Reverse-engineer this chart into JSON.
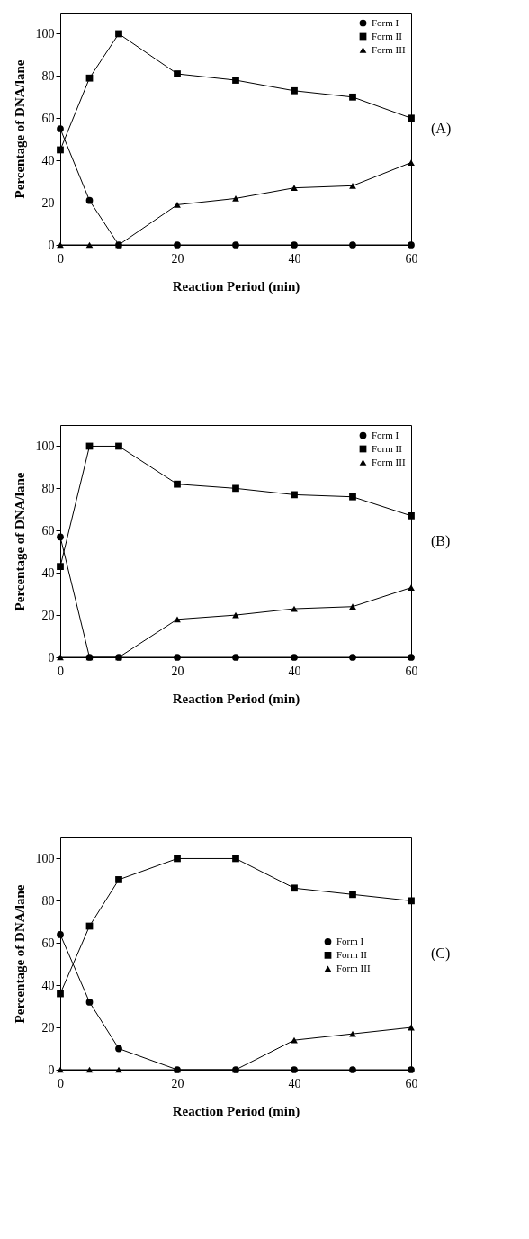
{
  "chart_data": [
    {
      "type": "line",
      "xlabel": "Reaction Period (min)",
      "ylabel": "Percentage of DNA/lane",
      "annotations": [
        "(A)"
      ],
      "x": [
        0,
        5,
        10,
        20,
        30,
        40,
        50,
        60
      ],
      "xlim": [
        0,
        60
      ],
      "xticks": [
        0,
        20,
        40,
        60
      ],
      "ylim": [
        0,
        110
      ],
      "yticks": [
        0,
        20,
        40,
        60,
        80,
        100
      ],
      "grid": false,
      "legend": "top right",
      "series": [
        {
          "name": "Form I",
          "color": "#000000",
          "marker": "circle",
          "values": [
            55,
            21,
            0,
            0,
            0,
            0,
            0,
            0
          ]
        },
        {
          "name": "Form II",
          "color": "#000000",
          "marker": "square",
          "values": [
            45,
            79,
            100,
            81,
            78,
            73,
            70,
            60
          ]
        },
        {
          "name": "Form III",
          "color": "#000000",
          "marker": "triangle",
          "values": [
            0,
            0,
            0,
            19,
            22,
            27,
            28,
            39
          ]
        }
      ]
    },
    {
      "type": "line",
      "xlabel": "Reaction Period (min)",
      "ylabel": "Percentage of DNA/lane",
      "annotations": [
        "(B)"
      ],
      "x": [
        0,
        5,
        10,
        20,
        30,
        40,
        50,
        60
      ],
      "xlim": [
        0,
        60
      ],
      "xticks": [
        0,
        20,
        40,
        60
      ],
      "ylim": [
        0,
        110
      ],
      "yticks": [
        0,
        20,
        40,
        60,
        80,
        100
      ],
      "grid": false,
      "legend": "top right",
      "series": [
        {
          "name": "Form I",
          "color": "#000000",
          "marker": "circle",
          "values": [
            57,
            0,
            0,
            0,
            0,
            0,
            0,
            0
          ]
        },
        {
          "name": "Form II",
          "color": "#000000",
          "marker": "square",
          "values": [
            43,
            100,
            100,
            82,
            80,
            77,
            76,
            67
          ]
        },
        {
          "name": "Form III",
          "color": "#000000",
          "marker": "triangle",
          "values": [
            0,
            0,
            0,
            18,
            20,
            23,
            24,
            33
          ]
        }
      ]
    },
    {
      "type": "line",
      "xlabel": "Reaction Period (min)",
      "ylabel": "Percentage of DNA/lane",
      "annotations": [
        "(C)"
      ],
      "x": [
        0,
        5,
        10,
        20,
        30,
        40,
        50,
        60
      ],
      "xlim": [
        0,
        60
      ],
      "xticks": [
        0,
        20,
        40,
        60
      ],
      "ylim": [
        0,
        110
      ],
      "yticks": [
        0,
        20,
        40,
        60,
        80,
        100
      ],
      "grid": false,
      "legend": "right",
      "series": [
        {
          "name": "Form I",
          "color": "#000000",
          "marker": "circle",
          "values": [
            64,
            32,
            10,
            0,
            0,
            0,
            0,
            0
          ]
        },
        {
          "name": "Form II",
          "color": "#000000",
          "marker": "square",
          "values": [
            36,
            68,
            90,
            100,
            100,
            86,
            83,
            80
          ]
        },
        {
          "name": "Form III",
          "color": "#000000",
          "marker": "triangle",
          "values": [
            0,
            0,
            0,
            0,
            0,
            14,
            17,
            20
          ]
        }
      ]
    }
  ]
}
